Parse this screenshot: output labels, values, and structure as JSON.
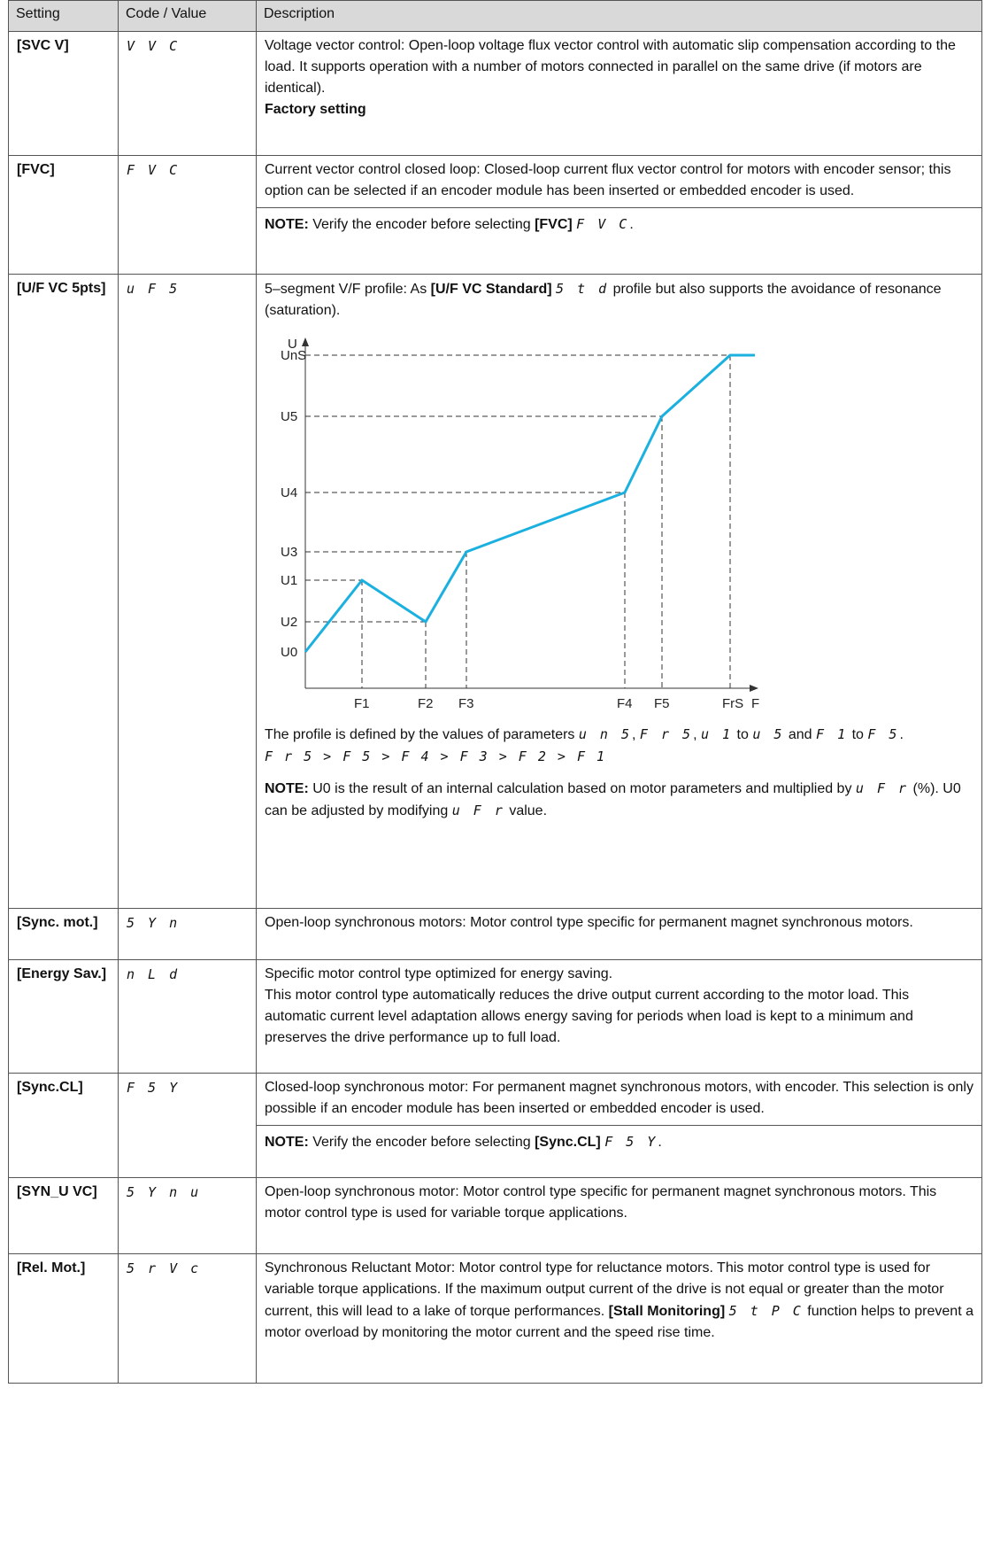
{
  "headers": {
    "setting": "Setting",
    "code": "Code / Value",
    "description": "Description"
  },
  "rows": {
    "svcv": {
      "setting": "[SVC V]",
      "code": "V V C",
      "desc": "Voltage vector control: Open-loop voltage flux vector control with automatic slip compensation according to the load. It supports operation with a number of motors connected in parallel on the same drive (if motors are identical).",
      "factory": "Factory setting"
    },
    "fvc": {
      "setting": "[FVC]",
      "code": "F V C",
      "desc": "Current vector control closed loop: Closed-loop current flux vector control for motors with encoder sensor; this option can be selected if an encoder module has been inserted or embedded encoder is used.",
      "note_label": "NOTE:",
      "note_text": "Verify the encoder before selecting",
      "note_param": "[FVC]",
      "note_code": "F V C",
      "note_end": "."
    },
    "ufs": {
      "setting": "[U/F VC 5pts]",
      "code": "u F 5",
      "desc_a": "5–segment V/F profile: As",
      "desc_param": "[U/F VC Standard]",
      "desc_code": "5 t d",
      "desc_b": "profile but also supports the avoidance of resonance (saturation).",
      "profile_a": "The profile is defined by the values of parameters",
      "c_uns": "u n 5",
      "c_frs": "F r 5",
      "c_u1": "u 1",
      "to": "to",
      "c_u5": "u 5",
      "and": "and",
      "c_f1": "F 1",
      "c_f5": "F 5",
      "order": "F r 5 > F 5 > F 4 > F 3 > F 2 > F 1",
      "note_label": "NOTE:",
      "note_a": "U0 is the result of an internal calculation based on motor parameters and multiplied by",
      "note_code": "u F r",
      "note_b": "(%). U0 can be adjusted by modifying",
      "note_code2": "u F r",
      "note_c": "value."
    },
    "syn": {
      "setting": "[Sync. mot.]",
      "code": "5 Y n",
      "desc": "Open-loop synchronous motors: Motor control type specific for permanent magnet synchronous motors."
    },
    "nld": {
      "setting": "[Energy Sav.]",
      "code": "n L d",
      "desc1": "Specific motor control type optimized for energy saving.",
      "desc2": "This motor control type automatically reduces the drive output current according to the motor load. This automatic current level adaptation allows energy saving for periods when load is kept to a minimum and preserves the drive performance up to full load."
    },
    "fsy": {
      "setting": "[Sync.CL]",
      "code": "F 5 Y",
      "desc": "Closed-loop synchronous motor: For permanent magnet synchronous motors, with encoder. This selection is only possible if an encoder module has been inserted or embedded encoder is used.",
      "note_label": "NOTE:",
      "note_text": "Verify the encoder before selecting",
      "note_param": "[Sync.CL]",
      "note_code": "F 5 Y",
      "note_end": "."
    },
    "synu": {
      "setting": "[SYN_U VC]",
      "code": "5 Y n u",
      "desc": "Open-loop synchronous motor: Motor control type specific for permanent magnet synchronous motors. This motor control type is used for variable torque applications."
    },
    "srvc": {
      "setting": "[Rel. Mot.]",
      "code": "5 r V c",
      "desc_a": "Synchronous Reluctant Motor: Motor control type for reluctance motors. This motor control type is used for variable torque applications. If the maximum output current of the drive is not equal or greater than the motor current, this will lead to a lake of torque performances.",
      "desc_param": "[Stall Monitoring]",
      "desc_code": "5 t P C",
      "desc_b": "function helps to prevent a motor overload by monitoring the motor current and the speed rise time."
    }
  },
  "chart_data": {
    "type": "line",
    "title": "",
    "xlabel": "F",
    "ylabel": "U",
    "x_ticks": [
      "F1",
      "F2",
      "F3",
      "F4",
      "F5",
      "FrS"
    ],
    "y_ticks": [
      "UnS",
      "U5",
      "U4",
      "U3",
      "U1",
      "U2",
      "U0"
    ],
    "series": [
      {
        "points": [
          {
            "x": "0",
            "y": "U0"
          },
          {
            "x": "F1",
            "y": "U1"
          },
          {
            "x": "F2",
            "y": "U2"
          },
          {
            "x": "F3",
            "y": "U3"
          },
          {
            "x": "F4",
            "y": "U4"
          },
          {
            "x": "F5",
            "y": "U5"
          },
          {
            "x": "FrS",
            "y": "UnS"
          }
        ]
      }
    ],
    "line_color": "#1ab0e0"
  }
}
